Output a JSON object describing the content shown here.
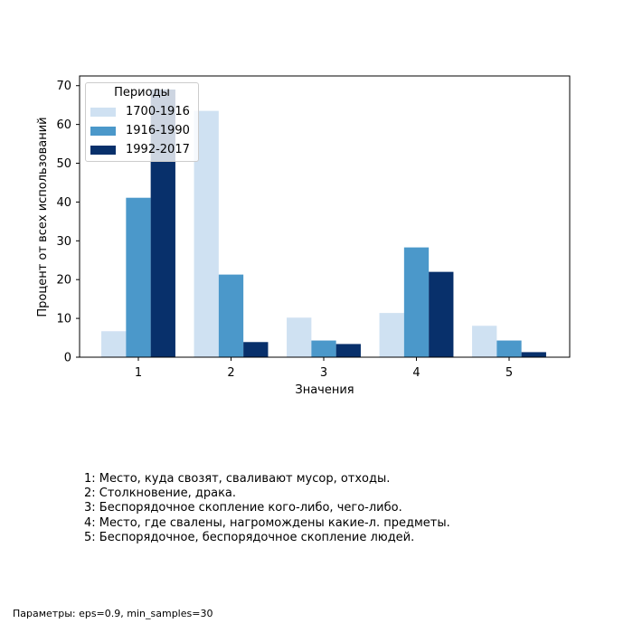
{
  "chart_data": {
    "type": "bar",
    "categories": [
      "1",
      "2",
      "3",
      "4",
      "5"
    ],
    "series": [
      {
        "name": "1700-1916",
        "values": [
          6.7,
          63.5,
          10.2,
          11.4,
          8.1
        ],
        "color": "#cfe1f2"
      },
      {
        "name": "1916-1990",
        "values": [
          41.1,
          21.3,
          4.3,
          28.3,
          4.3
        ],
        "color": "#4b98ca"
      },
      {
        "name": "1992-2017",
        "values": [
          69.0,
          3.9,
          3.4,
          22.0,
          1.3
        ],
        "color": "#08306b"
      }
    ],
    "xlabel": "Значения",
    "ylabel": "Процент от всех использований",
    "ylim": [
      0,
      72.5
    ],
    "yticks": [
      0,
      10,
      20,
      30,
      40,
      50,
      60,
      70
    ],
    "grid": false,
    "legend": {
      "title": "Периоды",
      "placement": "top-left"
    }
  },
  "notes": [
    "1: Место, куда свозят, сваливают мусор, отходы.",
    "2: Столкновение, драка.",
    "3: Беспорядочное скопление кого-либо, чего-либо.",
    "4: Место, где свалены, нагромождены какие-л. предметы.",
    "5: Беспорядочное, беспорядочное скопление людей."
  ],
  "params": "Параметры: eps=0.9, min_samples=30"
}
